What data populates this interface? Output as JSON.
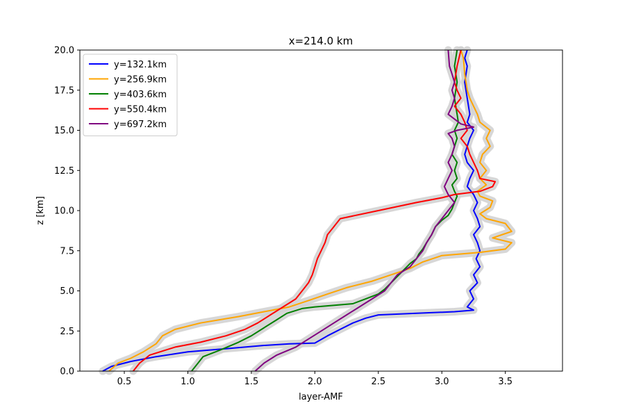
{
  "chart_data": {
    "type": "line",
    "title": "x=214.0 km",
    "xlabel": "layer-AMF",
    "ylabel": "z [km]",
    "xlim": [
      0.15,
      3.95
    ],
    "ylim": [
      0,
      20
    ],
    "xticks": [
      0.5,
      1.0,
      1.5,
      2.0,
      2.5,
      3.0,
      3.5
    ],
    "xtick_labels": [
      "0.5",
      "1.0",
      "1.5",
      "2.0",
      "2.5",
      "3.0",
      "3.5"
    ],
    "yticks": [
      0,
      2.5,
      5,
      7.5,
      10,
      12.5,
      15,
      17.5,
      20
    ],
    "ytick_labels": [
      "0.0",
      "2.5",
      "5.0",
      "7.5",
      "10.0",
      "12.5",
      "15.0",
      "17.5",
      "20.0"
    ],
    "grid": false,
    "legend_position": "top-left",
    "uncertainty_band_color": "#d3d3d3",
    "series": [
      {
        "name": "y=132.1km",
        "color": "#0000ff",
        "x": [
          0.33,
          0.4,
          0.55,
          0.75,
          1.0,
          1.3,
          1.6,
          1.8,
          2.0,
          2.1,
          2.2,
          2.3,
          2.4,
          2.5,
          2.8,
          3.1,
          3.25,
          3.2,
          3.25,
          3.22,
          3.28,
          3.25,
          3.3,
          3.27,
          3.3,
          3.28,
          3.25,
          3.3,
          3.28,
          3.25,
          3.28,
          3.25,
          3.2,
          3.22,
          3.25,
          3.2,
          3.18,
          3.2,
          3.22,
          3.25,
          3.2,
          3.22,
          3.2,
          3.18,
          3.2,
          3.18,
          3.2
        ],
        "y": [
          0,
          0.3,
          0.6,
          0.9,
          1.2,
          1.4,
          1.6,
          1.7,
          1.75,
          2.2,
          2.6,
          3.0,
          3.3,
          3.5,
          3.6,
          3.7,
          3.8,
          4.0,
          4.5,
          5.0,
          5.5,
          6.0,
          6.5,
          7.0,
          7.5,
          8.0,
          8.5,
          9.0,
          9.5,
          10.0,
          10.5,
          11.0,
          11.5,
          12.0,
          12.5,
          13.0,
          13.5,
          14.0,
          14.5,
          15.0,
          15.5,
          16.0,
          17.0,
          18.0,
          19.0,
          19.5,
          20.0
        ]
      },
      {
        "name": "y=256.9km",
        "color": "#ffa500",
        "x": [
          0.38,
          0.45,
          0.55,
          0.65,
          0.75,
          0.8,
          0.9,
          1.1,
          1.4,
          1.6,
          1.8,
          1.95,
          2.1,
          2.25,
          2.45,
          2.6,
          2.75,
          2.85,
          3.0,
          3.3,
          3.5,
          3.55,
          3.4,
          3.55,
          3.5,
          3.35,
          3.3,
          3.38,
          3.4,
          3.3,
          3.28,
          3.35,
          3.3,
          3.35,
          3.3,
          3.32,
          3.38,
          3.35,
          3.38,
          3.3,
          3.28,
          3.25,
          3.22,
          3.2,
          3.18,
          3.17,
          3.15
        ],
        "y": [
          0,
          0.5,
          0.8,
          1.2,
          1.7,
          2.2,
          2.6,
          3.0,
          3.4,
          3.7,
          4.0,
          4.4,
          4.8,
          5.2,
          5.6,
          6.0,
          6.4,
          6.8,
          7.2,
          7.4,
          7.6,
          8.0,
          8.3,
          8.7,
          9.2,
          9.5,
          9.8,
          10.2,
          10.6,
          10.9,
          11.2,
          11.6,
          12.0,
          12.5,
          13.0,
          13.5,
          14.0,
          14.5,
          15.0,
          15.5,
          16.0,
          16.5,
          17.0,
          17.5,
          18.5,
          19.5,
          20.0
        ]
      },
      {
        "name": "y=403.6km",
        "color": "#008000",
        "x": [
          1.03,
          1.08,
          1.12,
          1.25,
          1.4,
          1.5,
          1.6,
          1.7,
          1.78,
          1.9,
          2.0,
          2.3,
          2.4,
          2.5,
          2.55,
          2.6,
          2.65,
          2.7,
          2.75,
          2.8,
          2.82,
          2.85,
          2.88,
          2.92,
          2.95,
          3.0,
          3.05,
          3.08,
          3.1,
          3.12,
          3.1,
          3.08,
          3.12,
          3.1,
          3.12,
          3.08,
          3.1,
          3.12,
          3.1,
          3.13,
          3.12,
          3.1,
          3.12,
          3.1,
          3.12
        ],
        "y": [
          0,
          0.5,
          0.9,
          1.3,
          1.8,
          2.2,
          2.7,
          3.2,
          3.6,
          3.9,
          4.0,
          4.2,
          4.5,
          4.8,
          5.1,
          5.5,
          5.9,
          6.3,
          6.7,
          7.0,
          7.3,
          7.6,
          8.0,
          8.5,
          9.0,
          9.4,
          9.7,
          10.1,
          10.5,
          10.9,
          11.2,
          11.6,
          12.0,
          12.5,
          13.0,
          13.5,
          14.0,
          14.5,
          15.0,
          15.5,
          16.0,
          17.0,
          18.0,
          19.0,
          20.0
        ]
      },
      {
        "name": "y=550.4km",
        "color": "#ff0000",
        "x": [
          0.57,
          0.62,
          0.7,
          0.9,
          1.1,
          1.3,
          1.45,
          1.55,
          1.65,
          1.75,
          1.85,
          1.9,
          1.95,
          1.98,
          2.0,
          2.02,
          2.05,
          2.08,
          2.1,
          2.15,
          2.2,
          2.5,
          2.8,
          3.0,
          3.1,
          3.3,
          3.4,
          3.42,
          3.3,
          3.28,
          3.25,
          3.22,
          3.2,
          3.15,
          3.2,
          3.18,
          3.15,
          3.1,
          3.15,
          3.12,
          3.1,
          3.12,
          3.15
        ],
        "y": [
          0,
          0.5,
          1.0,
          1.5,
          1.8,
          2.2,
          2.6,
          3.0,
          3.5,
          4.0,
          4.5,
          5.0,
          5.5,
          6.0,
          6.5,
          7.0,
          7.5,
          8.0,
          8.5,
          9.0,
          9.5,
          10.0,
          10.5,
          10.8,
          11.0,
          11.2,
          11.5,
          11.8,
          12.0,
          12.5,
          13.0,
          13.5,
          14.0,
          14.5,
          15.0,
          15.5,
          16.0,
          16.5,
          17.0,
          17.5,
          18.0,
          19.0,
          20.0
        ]
      },
      {
        "name": "y=697.2km",
        "color": "#800080",
        "x": [
          1.53,
          1.6,
          1.7,
          1.85,
          1.95,
          2.05,
          2.15,
          2.25,
          2.35,
          2.45,
          2.55,
          2.6,
          2.65,
          2.75,
          2.8,
          2.85,
          2.88,
          2.92,
          2.95,
          3.0,
          3.05,
          3.1,
          3.05,
          3.02,
          3.05,
          3.08,
          3.05,
          3.08,
          3.1,
          3.08,
          3.05,
          3.12,
          3.25,
          3.15,
          3.1,
          3.05,
          3.08,
          3.1,
          3.08,
          3.1,
          3.08,
          3.06,
          3.05
        ],
        "y": [
          0,
          0.5,
          1.0,
          1.5,
          2.0,
          2.5,
          3.0,
          3.5,
          4.0,
          4.5,
          5.0,
          5.5,
          6.0,
          6.5,
          7.0,
          7.5,
          8.0,
          8.5,
          9.0,
          9.5,
          10.0,
          10.5,
          11.0,
          11.5,
          12.0,
          12.5,
          13.0,
          13.5,
          14.0,
          14.5,
          14.8,
          15.0,
          15.2,
          15.4,
          15.7,
          16.0,
          16.5,
          17.0,
          17.5,
          18.0,
          18.5,
          19.0,
          20.0
        ]
      }
    ]
  }
}
